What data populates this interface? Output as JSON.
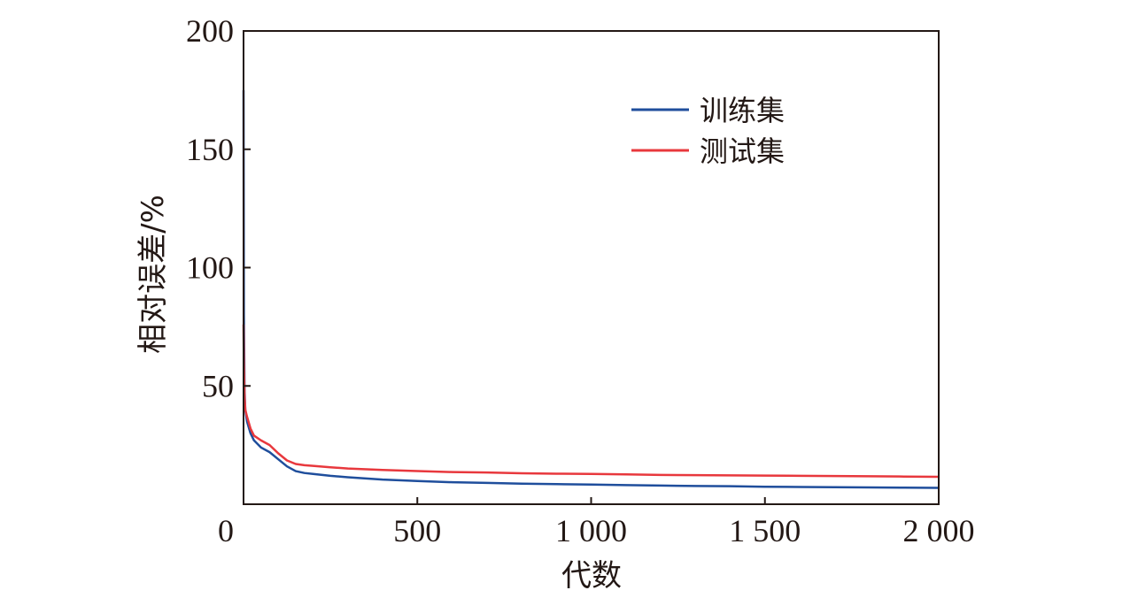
{
  "chart_data": {
    "type": "line",
    "title": "",
    "xlabel": "代数",
    "ylabel": "相对误差/%",
    "xlim": [
      0,
      2000
    ],
    "ylim": [
      0,
      200
    ],
    "x_ticks": [
      0,
      500,
      1000,
      1500,
      2000
    ],
    "x_tick_labels": [
      "0",
      "500",
      "1 000",
      "1 500",
      "2 000"
    ],
    "y_ticks": [
      50,
      100,
      150,
      200
    ],
    "y_tick_labels": [
      "50",
      "100",
      "150",
      "200"
    ],
    "grid": false,
    "legend_position": "top-right",
    "series": [
      {
        "name": "训练集",
        "color": "#1f4e9c",
        "x": [
          0,
          1,
          3,
          5,
          10,
          20,
          30,
          50,
          75,
          100,
          125,
          150,
          175,
          200,
          250,
          300,
          400,
          500,
          600,
          700,
          800,
          900,
          1000,
          1100,
          1200,
          1300,
          1400,
          1500,
          1600,
          1700,
          1800,
          1900,
          2000
        ],
        "y": [
          175,
          80,
          48,
          40,
          35,
          30,
          27,
          24,
          22,
          19,
          16,
          14,
          13.2,
          12.8,
          12,
          11.4,
          10.4,
          9.8,
          9.3,
          9.0,
          8.7,
          8.5,
          8.3,
          8.1,
          7.9,
          7.7,
          7.6,
          7.4,
          7.3,
          7.2,
          7.1,
          7.0,
          6.9
        ]
      },
      {
        "name": "测试集",
        "color": "#e8383d",
        "x": [
          0,
          1,
          3,
          5,
          10,
          20,
          30,
          50,
          75,
          100,
          125,
          150,
          175,
          200,
          250,
          300,
          400,
          500,
          600,
          700,
          800,
          900,
          1000,
          1100,
          1200,
          1300,
          1400,
          1500,
          1600,
          1700,
          1800,
          1900,
          2000
        ],
        "y": [
          76,
          60,
          45,
          40,
          37,
          32,
          29,
          27,
          25,
          21.5,
          18.5,
          17,
          16.5,
          16.2,
          15.6,
          15.1,
          14.5,
          14.0,
          13.6,
          13.4,
          13.1,
          12.9,
          12.8,
          12.6,
          12.4,
          12.3,
          12.2,
          12.1,
          12.0,
          11.9,
          11.8,
          11.7,
          11.6
        ]
      }
    ]
  }
}
